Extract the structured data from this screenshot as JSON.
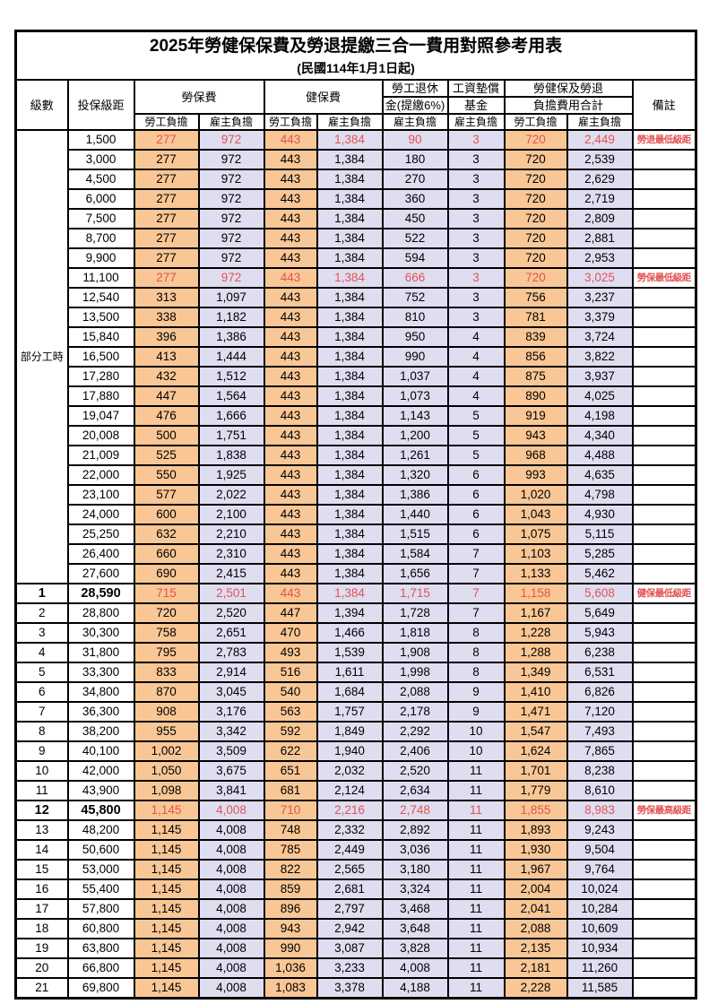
{
  "title": "2025年勞健保保費及勞退提繳三合一費用對照參考用表",
  "subtitle": "(民國114年1月1日起)",
  "colors": {
    "employee_bg": "#f9c795",
    "employer_bg": "#dfddf0",
    "highlight_red": "#e25353",
    "border": "#000000"
  },
  "header": {
    "level": "級數",
    "bracket": "投保級距",
    "labor_insurance": "勞保費",
    "health_insurance": "健保費",
    "pension_line1": "勞工退休",
    "pension_line2": "金(提繳6%)",
    "fund_line1": "工資墊償",
    "fund_line2": "基金",
    "total_line1": "勞健保及勞退",
    "total_line2": "負擔費用合計",
    "remark": "備註",
    "employee": "勞工負擔",
    "employer": "雇主負擔"
  },
  "table": {
    "part_time_label": "部分工時",
    "part_time_rowspan": 23,
    "rows": [
      {
        "bracket": "1,500",
        "values": [
          "277",
          "972",
          "443",
          "1,384",
          "90",
          "3",
          "720",
          "2,449"
        ],
        "remark": "勞退最低級距",
        "red": true
      },
      {
        "bracket": "3,000",
        "values": [
          "277",
          "972",
          "443",
          "1,384",
          "180",
          "3",
          "720",
          "2,539"
        ]
      },
      {
        "bracket": "4,500",
        "values": [
          "277",
          "972",
          "443",
          "1,384",
          "270",
          "3",
          "720",
          "2,629"
        ]
      },
      {
        "bracket": "6,000",
        "values": [
          "277",
          "972",
          "443",
          "1,384",
          "360",
          "3",
          "720",
          "2,719"
        ]
      },
      {
        "bracket": "7,500",
        "values": [
          "277",
          "972",
          "443",
          "1,384",
          "450",
          "3",
          "720",
          "2,809"
        ]
      },
      {
        "bracket": "8,700",
        "values": [
          "277",
          "972",
          "443",
          "1,384",
          "522",
          "3",
          "720",
          "2,881"
        ]
      },
      {
        "bracket": "9,900",
        "values": [
          "277",
          "972",
          "443",
          "1,384",
          "594",
          "3",
          "720",
          "2,953"
        ]
      },
      {
        "bracket": "11,100",
        "values": [
          "277",
          "972",
          "443",
          "1,384",
          "666",
          "3",
          "720",
          "3,025"
        ],
        "remark": "勞保最低級距",
        "red": true
      },
      {
        "bracket": "12,540",
        "values": [
          "313",
          "1,097",
          "443",
          "1,384",
          "752",
          "3",
          "756",
          "3,237"
        ]
      },
      {
        "bracket": "13,500",
        "values": [
          "338",
          "1,182",
          "443",
          "1,384",
          "810",
          "3",
          "781",
          "3,379"
        ]
      },
      {
        "bracket": "15,840",
        "values": [
          "396",
          "1,386",
          "443",
          "1,384",
          "950",
          "4",
          "839",
          "3,724"
        ]
      },
      {
        "bracket": "16,500",
        "values": [
          "413",
          "1,444",
          "443",
          "1,384",
          "990",
          "4",
          "856",
          "3,822"
        ]
      },
      {
        "bracket": "17,280",
        "values": [
          "432",
          "1,512",
          "443",
          "1,384",
          "1,037",
          "4",
          "875",
          "3,937"
        ]
      },
      {
        "bracket": "17,880",
        "values": [
          "447",
          "1,564",
          "443",
          "1,384",
          "1,073",
          "4",
          "890",
          "4,025"
        ]
      },
      {
        "bracket": "19,047",
        "values": [
          "476",
          "1,666",
          "443",
          "1,384",
          "1,143",
          "5",
          "919",
          "4,198"
        ]
      },
      {
        "bracket": "20,008",
        "values": [
          "500",
          "1,751",
          "443",
          "1,384",
          "1,200",
          "5",
          "943",
          "4,340"
        ]
      },
      {
        "bracket": "21,009",
        "values": [
          "525",
          "1,838",
          "443",
          "1,384",
          "1,261",
          "5",
          "968",
          "4,488"
        ]
      },
      {
        "bracket": "22,000",
        "values": [
          "550",
          "1,925",
          "443",
          "1,384",
          "1,320",
          "6",
          "993",
          "4,635"
        ]
      },
      {
        "bracket": "23,100",
        "values": [
          "577",
          "2,022",
          "443",
          "1,384",
          "1,386",
          "6",
          "1,020",
          "4,798"
        ]
      },
      {
        "bracket": "24,000",
        "values": [
          "600",
          "2,100",
          "443",
          "1,384",
          "1,440",
          "6",
          "1,043",
          "4,930"
        ]
      },
      {
        "bracket": "25,250",
        "values": [
          "632",
          "2,210",
          "443",
          "1,384",
          "1,515",
          "6",
          "1,075",
          "5,115"
        ]
      },
      {
        "bracket": "26,400",
        "values": [
          "660",
          "2,310",
          "443",
          "1,384",
          "1,584",
          "7",
          "1,103",
          "5,285"
        ]
      },
      {
        "bracket": "27,600",
        "values": [
          "690",
          "2,415",
          "443",
          "1,384",
          "1,656",
          "7",
          "1,133",
          "5,462"
        ]
      },
      {
        "level": "1",
        "bracket": "28,590",
        "values": [
          "715",
          "2,501",
          "443",
          "1,384",
          "1,715",
          "7",
          "1,158",
          "5,608"
        ],
        "remark": "健保最低級距",
        "red": true,
        "bold": true
      },
      {
        "level": "2",
        "bracket": "28,800",
        "values": [
          "720",
          "2,520",
          "447",
          "1,394",
          "1,728",
          "7",
          "1,167",
          "5,649"
        ]
      },
      {
        "level": "3",
        "bracket": "30,300",
        "values": [
          "758",
          "2,651",
          "470",
          "1,466",
          "1,818",
          "8",
          "1,228",
          "5,943"
        ]
      },
      {
        "level": "4",
        "bracket": "31,800",
        "values": [
          "795",
          "2,783",
          "493",
          "1,539",
          "1,908",
          "8",
          "1,288",
          "6,238"
        ]
      },
      {
        "level": "5",
        "bracket": "33,300",
        "values": [
          "833",
          "2,914",
          "516",
          "1,611",
          "1,998",
          "8",
          "1,349",
          "6,531"
        ]
      },
      {
        "level": "6",
        "bracket": "34,800",
        "values": [
          "870",
          "3,045",
          "540",
          "1,684",
          "2,088",
          "9",
          "1,410",
          "6,826"
        ]
      },
      {
        "level": "7",
        "bracket": "36,300",
        "values": [
          "908",
          "3,176",
          "563",
          "1,757",
          "2,178",
          "9",
          "1,471",
          "7,120"
        ]
      },
      {
        "level": "8",
        "bracket": "38,200",
        "values": [
          "955",
          "3,342",
          "592",
          "1,849",
          "2,292",
          "10",
          "1,547",
          "7,493"
        ]
      },
      {
        "level": "9",
        "bracket": "40,100",
        "values": [
          "1,002",
          "3,509",
          "622",
          "1,940",
          "2,406",
          "10",
          "1,624",
          "7,865"
        ]
      },
      {
        "level": "10",
        "bracket": "42,000",
        "values": [
          "1,050",
          "3,675",
          "651",
          "2,032",
          "2,520",
          "11",
          "1,701",
          "8,238"
        ]
      },
      {
        "level": "11",
        "bracket": "43,900",
        "values": [
          "1,098",
          "3,841",
          "681",
          "2,124",
          "2,634",
          "11",
          "1,779",
          "8,610"
        ]
      },
      {
        "level": "12",
        "bracket": "45,800",
        "values": [
          "1,145",
          "4,008",
          "710",
          "2,216",
          "2,748",
          "11",
          "1,855",
          "8,983"
        ],
        "remark": "勞保最高級距",
        "red": true,
        "bold": true
      },
      {
        "level": "13",
        "bracket": "48,200",
        "values": [
          "1,145",
          "4,008",
          "748",
          "2,332",
          "2,892",
          "11",
          "1,893",
          "9,243"
        ]
      },
      {
        "level": "14",
        "bracket": "50,600",
        "values": [
          "1,145",
          "4,008",
          "785",
          "2,449",
          "3,036",
          "11",
          "1,930",
          "9,504"
        ]
      },
      {
        "level": "15",
        "bracket": "53,000",
        "values": [
          "1,145",
          "4,008",
          "822",
          "2,565",
          "3,180",
          "11",
          "1,967",
          "9,764"
        ]
      },
      {
        "level": "16",
        "bracket": "55,400",
        "values": [
          "1,145",
          "4,008",
          "859",
          "2,681",
          "3,324",
          "11",
          "2,004",
          "10,024"
        ]
      },
      {
        "level": "17",
        "bracket": "57,800",
        "values": [
          "1,145",
          "4,008",
          "896",
          "2,797",
          "3,468",
          "11",
          "2,041",
          "10,284"
        ]
      },
      {
        "level": "18",
        "bracket": "60,800",
        "values": [
          "1,145",
          "4,008",
          "943",
          "2,942",
          "3,648",
          "11",
          "2,088",
          "10,609"
        ]
      },
      {
        "level": "19",
        "bracket": "63,800",
        "values": [
          "1,145",
          "4,008",
          "990",
          "3,087",
          "3,828",
          "11",
          "2,135",
          "10,934"
        ]
      },
      {
        "level": "20",
        "bracket": "66,800",
        "values": [
          "1,145",
          "4,008",
          "1,036",
          "3,233",
          "4,008",
          "11",
          "2,181",
          "11,260"
        ]
      },
      {
        "level": "21",
        "bracket": "69,800",
        "values": [
          "1,145",
          "4,008",
          "1,083",
          "3,378",
          "4,188",
          "11",
          "2,228",
          "11,585"
        ]
      }
    ]
  }
}
